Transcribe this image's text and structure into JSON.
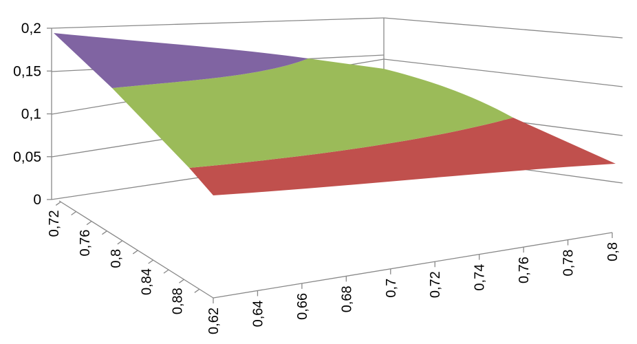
{
  "chart_data": {
    "type": "surface",
    "title": "",
    "z_ticks": [
      "0",
      "0,05",
      "0,1",
      "0,15",
      "0,2"
    ],
    "z_range": [
      0,
      0.2
    ],
    "x_ticks": [
      "0,62",
      "0,64",
      "0,66",
      "0,68",
      "0,7",
      "0,72",
      "0,74",
      "0,76",
      "0,78",
      "0,8"
    ],
    "y_ticks": [
      "0,72",
      "0,76",
      "0,8",
      "0,84",
      "0,88"
    ],
    "bands": [
      {
        "range": "0-0,05",
        "color": "#c0504d"
      },
      {
        "range": "0,05-0,1",
        "color": "#9bbb59"
      },
      {
        "range": "0,1-0,15",
        "color": "#9bbb59"
      },
      {
        "range": "0,15-0,2",
        "color": "#8064a2"
      }
    ],
    "corner_values": {
      "x_0.62_y_0.72": 0.195,
      "x_0.62_y_0.88": 0.06,
      "x_0.8_y_0.72": 0.11,
      "x_0.8_y_0.88": 0.04
    },
    "grid": true
  }
}
